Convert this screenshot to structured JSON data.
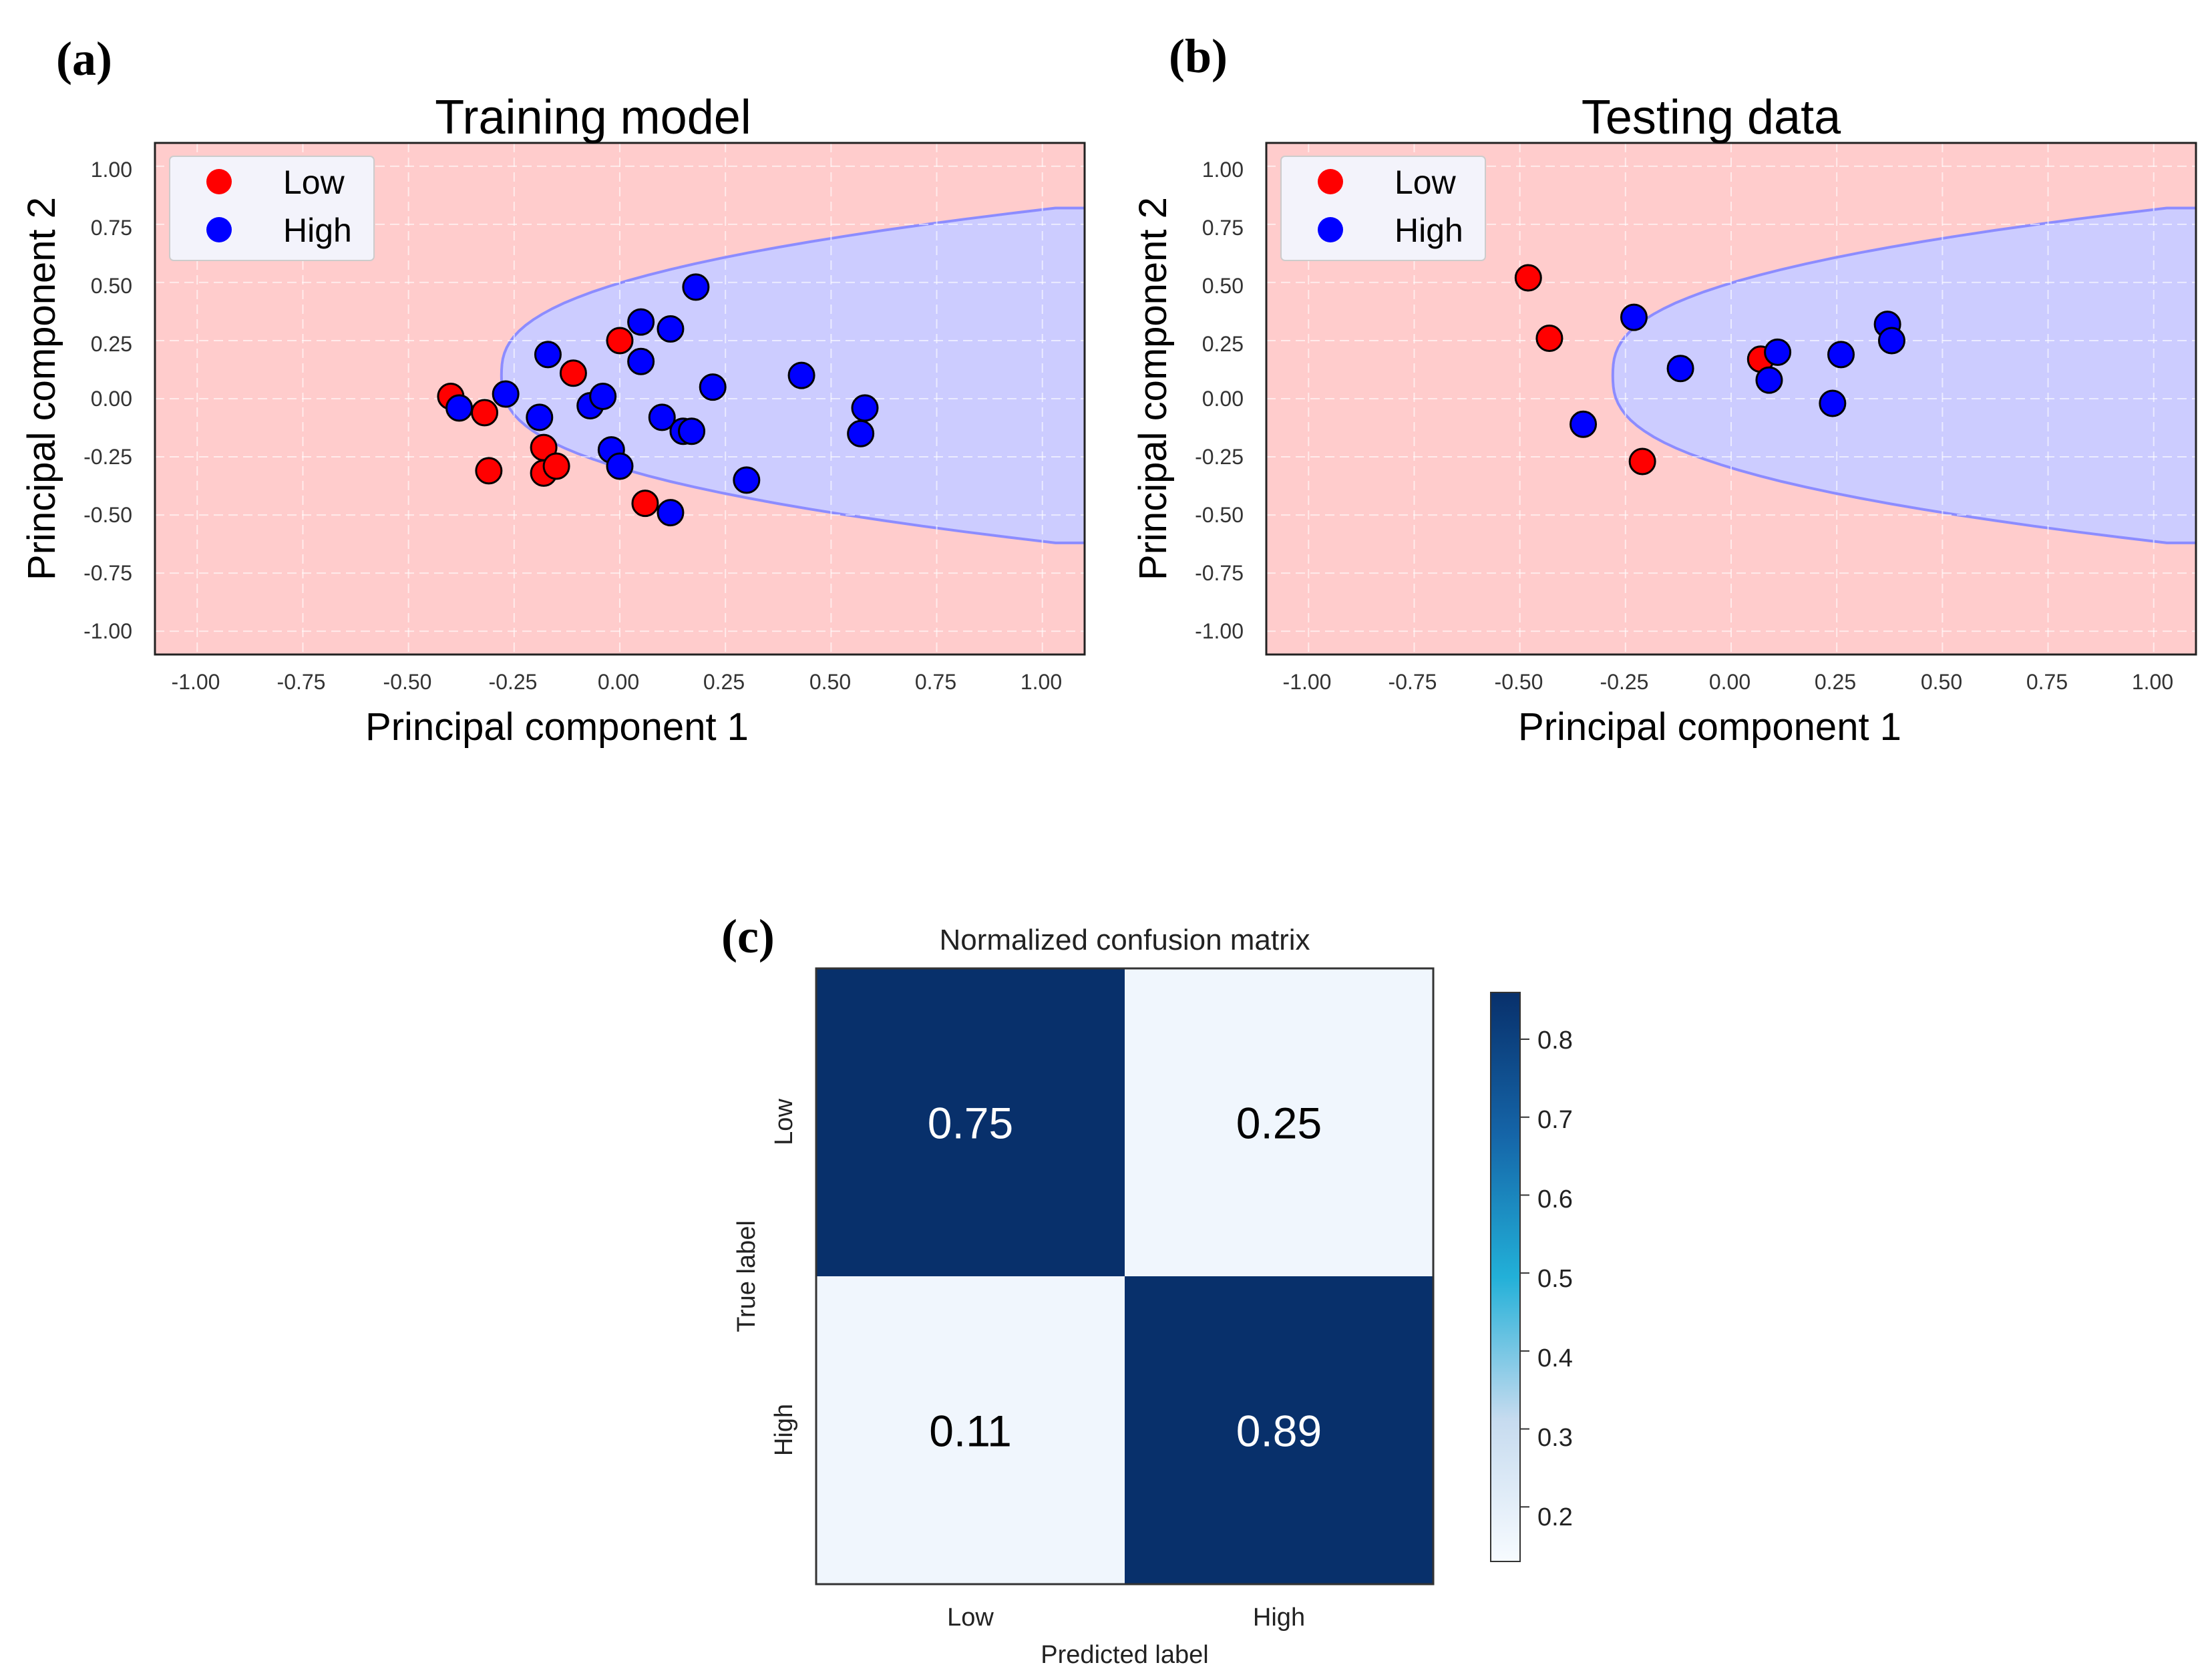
{
  "panel_labels": [
    "(a)",
    "(b)",
    "(c)"
  ],
  "colors": {
    "low": "#ff0000",
    "high": "#0000ff",
    "region_low": "#ffcccc",
    "region_high": "#ccccff",
    "boundary": "#8c8cff",
    "cm_dark": "#08306b",
    "cm_light": "#f0f6fd"
  },
  "chart_data": [
    {
      "id": "training",
      "type": "scatter",
      "title": "Training model",
      "xlabel": "Principal component 1",
      "ylabel": "Principal component 2",
      "xlim": [
        -1.1,
        1.1
      ],
      "ylim": [
        -1.1,
        1.1
      ],
      "xticks": [
        "-1.00",
        "-0.75",
        "-0.50",
        "-0.25",
        "0.00",
        "0.25",
        "0.50",
        "0.75",
        "1.00"
      ],
      "yticks": [
        "1.00",
        "0.75",
        "0.50",
        "0.25",
        "0.00",
        "-0.25",
        "-0.50",
        "-0.75",
        "-1.00"
      ],
      "grid": true,
      "legend": {
        "position": "top-left",
        "entries": [
          "Low",
          "High"
        ]
      },
      "decision_region": {
        "type": "parabola",
        "vertex_x": -0.28,
        "vertex_y": 0.1,
        "half_width": 0.72,
        "x_end": 1.1,
        "inside_class": "High",
        "outside_class": "Low"
      },
      "series": [
        {
          "name": "Low",
          "points": [
            [
              -0.4,
              0.01
            ],
            [
              -0.32,
              -0.06
            ],
            [
              -0.31,
              -0.31
            ],
            [
              -0.18,
              -0.21
            ],
            [
              -0.18,
              -0.32
            ],
            [
              -0.15,
              -0.29
            ],
            [
              -0.11,
              0.11
            ],
            [
              0.0,
              0.25
            ],
            [
              0.06,
              -0.45
            ]
          ]
        },
        {
          "name": "High",
          "points": [
            [
              -0.38,
              -0.04
            ],
            [
              -0.27,
              0.02
            ],
            [
              -0.19,
              -0.08
            ],
            [
              -0.17,
              0.19
            ],
            [
              -0.07,
              -0.03
            ],
            [
              -0.04,
              0.01
            ],
            [
              -0.02,
              -0.22
            ],
            [
              0.0,
              -0.29
            ],
            [
              0.05,
              0.33
            ],
            [
              0.05,
              0.16
            ],
            [
              0.1,
              -0.08
            ],
            [
              0.12,
              0.3
            ],
            [
              0.15,
              -0.14
            ],
            [
              0.17,
              -0.14
            ],
            [
              0.18,
              0.48
            ],
            [
              0.22,
              0.05
            ],
            [
              0.3,
              -0.35
            ],
            [
              0.43,
              0.1
            ],
            [
              0.57,
              -0.15
            ],
            [
              0.58,
              -0.04
            ],
            [
              0.12,
              -0.49
            ]
          ]
        }
      ]
    },
    {
      "id": "testing",
      "type": "scatter",
      "title": "Testing data",
      "xlabel": "Principal component 1",
      "ylabel": "Principal component 2",
      "xlim": [
        -1.1,
        1.1
      ],
      "ylim": [
        -1.1,
        1.1
      ],
      "xticks": [
        "-1.00",
        "-0.75",
        "-0.50",
        "-0.25",
        "0.00",
        "0.25",
        "0.50",
        "0.75",
        "1.00"
      ],
      "yticks": [
        "1.00",
        "0.75",
        "0.50",
        "0.25",
        "0.00",
        "-0.25",
        "-0.50",
        "-0.75",
        "-1.00"
      ],
      "grid": true,
      "legend": {
        "position": "top-left",
        "entries": [
          "Low",
          "High"
        ]
      },
      "decision_region": {
        "type": "parabola",
        "vertex_x": -0.28,
        "vertex_y": 0.1,
        "half_width": 0.72,
        "x_end": 1.1,
        "inside_class": "High",
        "outside_class": "Low"
      },
      "series": [
        {
          "name": "Low",
          "points": [
            [
              -0.48,
              0.52
            ],
            [
              -0.43,
              0.26
            ],
            [
              -0.21,
              -0.27
            ],
            [
              0.07,
              0.17
            ]
          ]
        },
        {
          "name": "High",
          "points": [
            [
              -0.35,
              -0.11
            ],
            [
              -0.23,
              0.35
            ],
            [
              -0.12,
              0.13
            ],
            [
              0.09,
              0.08
            ],
            [
              0.11,
              0.2
            ],
            [
              0.24,
              -0.02
            ],
            [
              0.26,
              0.19
            ],
            [
              0.37,
              0.32
            ],
            [
              0.38,
              0.25
            ]
          ]
        }
      ]
    },
    {
      "id": "confusion",
      "type": "heatmap",
      "title": "Normalized confusion matrix",
      "xlabel": "Predicted label",
      "ylabel": "True label",
      "x_categories": [
        "Low",
        "High"
      ],
      "y_categories": [
        "Low",
        "High"
      ],
      "values": [
        [
          0.75,
          0.25
        ],
        [
          0.11,
          0.89
        ]
      ],
      "value_labels": [
        [
          "0.75",
          "0.25"
        ],
        [
          "0.11",
          "0.89"
        ]
      ],
      "colorbar": {
        "range": [
          0.13,
          0.86
        ],
        "ticks": [
          "0.8",
          "0.7",
          "0.6",
          "0.5",
          "0.4",
          "0.3",
          "0.2"
        ]
      }
    }
  ]
}
